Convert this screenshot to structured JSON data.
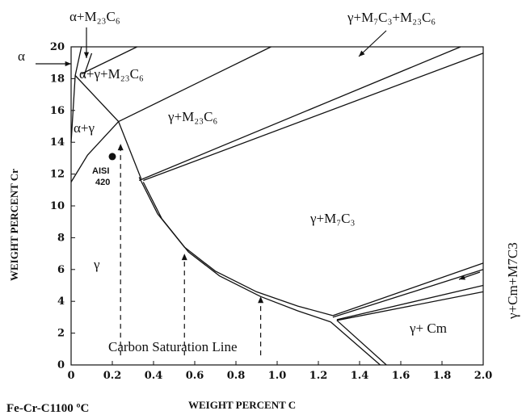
{
  "chart_data": {
    "type": "phase-diagram",
    "title": "Fe-Cr-C1100 ºC",
    "xlabel": "WEIGHT PERCENT  C",
    "ylabel": "WEIGHT PERCENT Cr",
    "xlim": [
      0,
      2.0
    ],
    "ylim": [
      0,
      20
    ],
    "xticks": [
      "0",
      "0.2",
      "0.4",
      "0.6",
      "0.8",
      "1.0",
      "1.2",
      "1.4",
      "1.6",
      "1.8",
      "2.0"
    ],
    "yticks": [
      "0",
      "2",
      "4",
      "6",
      "8",
      "10",
      "12",
      "14",
      "16",
      "18",
      "20"
    ],
    "point": {
      "label_line1": "AISI",
      "label_line2": "420",
      "x": 0.2,
      "y": 13.1
    },
    "region_labels": {
      "alpha_m23": "α+M₂₃C₆",
      "alpha": "α",
      "alpha_gamma_m23": "α+γ+M₂₃C₆",
      "gamma_m23": "γ+M₂₃C₆",
      "alpha_gamma": "α+γ",
      "gamma_m7_m23": "γ+M₇C₃+M₂₃C₆",
      "gamma_m7": "γ+M₇C₃",
      "gamma": "γ",
      "gamma_cm": "γ+ Cm",
      "gamma_cm_m7_side": "γ+Cm+M7C3"
    },
    "annotation": "Carbon Saturation Line",
    "boundaries": [
      {
        "name": "alpha-solvus",
        "points": [
          [
            0.0,
            14.0
          ],
          [
            0.02,
            18.2
          ],
          [
            0.05,
            20
          ]
        ]
      },
      {
        "name": "alpha-gamma-left",
        "points": [
          [
            0.0,
            11.5
          ],
          [
            0.08,
            13.2
          ],
          [
            0.18,
            14.6
          ],
          [
            0.23,
            15.3
          ]
        ]
      },
      {
        "name": "alpha-gamma-top",
        "points": [
          [
            0.02,
            18.2
          ],
          [
            0.23,
            15.3
          ]
        ]
      },
      {
        "name": "tie-alpha-m23",
        "points": [
          [
            0.06,
            18.1
          ],
          [
            0.1,
            19.6
          ]
        ]
      },
      {
        "name": "gamma-m23-lower",
        "points": [
          [
            0.23,
            15.3
          ],
          [
            0.34,
            11.7
          ]
        ]
      },
      {
        "name": "m23-left-line",
        "points": [
          [
            0.05,
            18.3
          ],
          [
            0.32,
            20.0
          ]
        ]
      },
      {
        "name": "m23-right-line",
        "points": [
          [
            0.23,
            15.3
          ],
          [
            0.97,
            20.0
          ]
        ]
      },
      {
        "name": "m7-m23-upper",
        "points": [
          [
            0.33,
            11.6
          ],
          [
            1.89,
            20.0
          ]
        ]
      },
      {
        "name": "m7-m23-lower",
        "points": [
          [
            0.35,
            11.6
          ],
          [
            2.0,
            19.6
          ]
        ]
      },
      {
        "name": "saturation-upper",
        "points": [
          [
            0.33,
            11.8
          ],
          [
            0.42,
            9.5
          ],
          [
            0.55,
            7.4
          ],
          [
            0.7,
            5.9
          ],
          [
            0.9,
            4.6
          ],
          [
            1.1,
            3.7
          ],
          [
            1.27,
            3.1
          ]
        ]
      },
      {
        "name": "saturation-lower",
        "points": [
          [
            0.35,
            11.5
          ],
          [
            0.44,
            9.2
          ],
          [
            0.57,
            7.1
          ],
          [
            0.72,
            5.6
          ],
          [
            0.92,
            4.3
          ],
          [
            1.1,
            3.4
          ],
          [
            1.26,
            2.7
          ]
        ]
      },
      {
        "name": "cm-upper-1",
        "points": [
          [
            1.27,
            3.1
          ],
          [
            2.0,
            6.4
          ]
        ]
      },
      {
        "name": "cm-upper-2",
        "points": [
          [
            1.27,
            3.0
          ],
          [
            2.0,
            6.0
          ]
        ]
      },
      {
        "name": "cm-mid",
        "points": [
          [
            1.29,
            2.85
          ],
          [
            2.0,
            5.0
          ]
        ]
      },
      {
        "name": "cm-lower",
        "points": [
          [
            1.29,
            2.8
          ],
          [
            2.0,
            4.6
          ]
        ]
      },
      {
        "name": "gamma-cm-left",
        "points": [
          [
            1.26,
            2.7
          ],
          [
            1.5,
            0.0
          ]
        ]
      },
      {
        "name": "gamma-cm-right",
        "points": [
          [
            1.29,
            2.8
          ],
          [
            1.53,
            0.0
          ]
        ]
      }
    ]
  }
}
